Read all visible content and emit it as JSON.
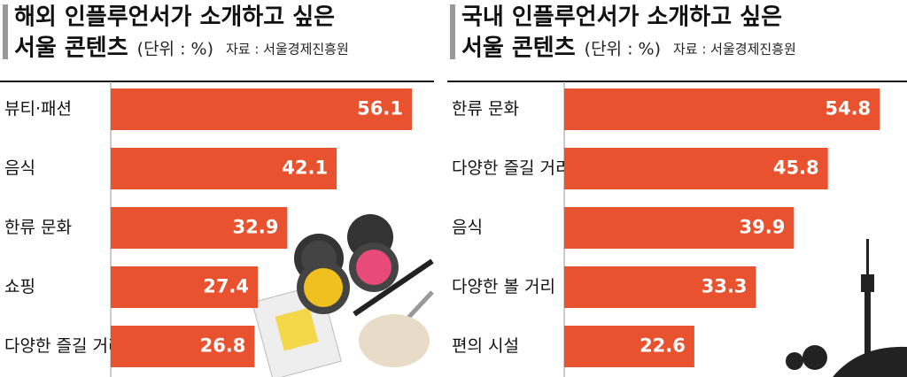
{
  "chart_data": [
    {
      "type": "bar",
      "title": [
        "해외 인플루언서가 소개하고 싶은",
        "서울 콘텐츠"
      ],
      "unit": "(단위 : %)",
      "source": "자료 : 서울경제진흥원",
      "categories": [
        "뷰티·패션",
        "음식",
        "한류 문화",
        "쇼핑",
        "다양한 즐길 거리"
      ],
      "values": [
        56.1,
        42.1,
        32.9,
        27.4,
        26.8
      ],
      "color": "#e8522e"
    },
    {
      "type": "bar",
      "title": [
        "국내 인플루언서가 소개하고 싶은",
        "서울 콘텐츠"
      ],
      "unit": "(단위 : %)",
      "source": "자료 : 서울경제진흥원",
      "categories": [
        "한류 문화",
        "다양한 즐길 거리",
        "음식",
        "다양한 볼 거리",
        "편의 시설"
      ],
      "values": [
        54.8,
        45.8,
        39.9,
        33.3,
        22.6
      ],
      "color": "#e8522e"
    }
  ]
}
